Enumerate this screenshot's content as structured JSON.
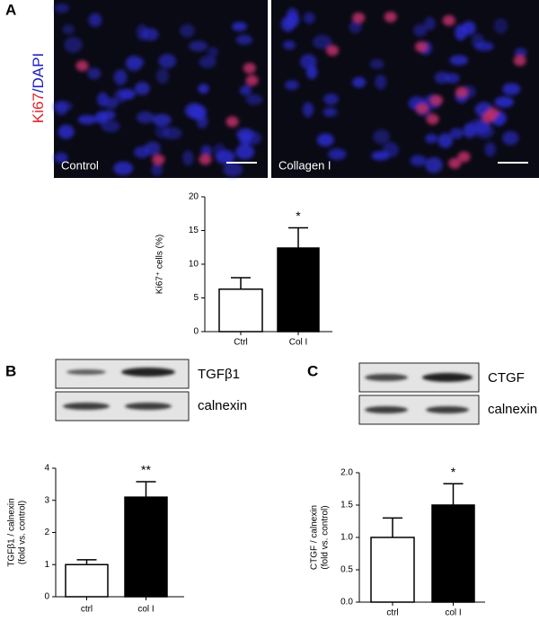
{
  "chart_data": [
    {
      "type": "bar",
      "ylabel": [
        "Ki67⁺ cells (%)"
      ],
      "categories": [
        "Ctrl",
        "Col I"
      ],
      "values": [
        6.3,
        12.4
      ],
      "errors": [
        1.7,
        3.0
      ],
      "colors": [
        "#ffffff",
        "#000000"
      ],
      "ylim": [
        0,
        20
      ],
      "yticks": [
        0,
        5,
        10,
        15,
        20
      ],
      "annotation": {
        "category": 1,
        "text": "*"
      }
    },
    {
      "type": "bar",
      "ylabel": [
        "TGFβ1 / calnexin",
        "(fold vs. control)"
      ],
      "categories": [
        "ctrl",
        "col I"
      ],
      "values": [
        1.0,
        3.1
      ],
      "errors": [
        0.15,
        0.48
      ],
      "colors": [
        "#ffffff",
        "#000000"
      ],
      "ylim": [
        0,
        4
      ],
      "yticks": [
        0,
        1,
        2,
        3,
        4
      ],
      "annotation": {
        "category": 1,
        "text": "**"
      }
    },
    {
      "type": "bar",
      "ylabel": [
        "CTGF / calnexin",
        "(fold vs. control)"
      ],
      "categories": [
        "ctrl",
        "col I"
      ],
      "values": [
        1.0,
        1.5
      ],
      "errors": [
        0.3,
        0.33
      ],
      "colors": [
        "#ffffff",
        "#000000"
      ],
      "ylim": [
        0,
        2.0
      ],
      "yticks": [
        {
          "value": 0,
          "label": "0.0"
        },
        {
          "value": 0.5,
          "label": "0.5"
        },
        {
          "value": 1,
          "label": "1.0"
        },
        {
          "value": 1.5,
          "label": "1.5"
        },
        {
          "value": 2,
          "label": "2.0"
        }
      ],
      "annotation": {
        "category": 1,
        "text": "*"
      }
    }
  ],
  "panel_labels": [
    "A",
    "B",
    "C"
  ],
  "microscopy": {
    "stain": [
      "Ki67",
      "/DAPI"
    ],
    "images": [
      "Control",
      "Collagen I"
    ]
  },
  "blots": [
    {
      "bands": [
        "TGFβ1",
        "calnexin"
      ]
    },
    {
      "bands": [
        "CTGF",
        "calnexin"
      ]
    }
  ]
}
